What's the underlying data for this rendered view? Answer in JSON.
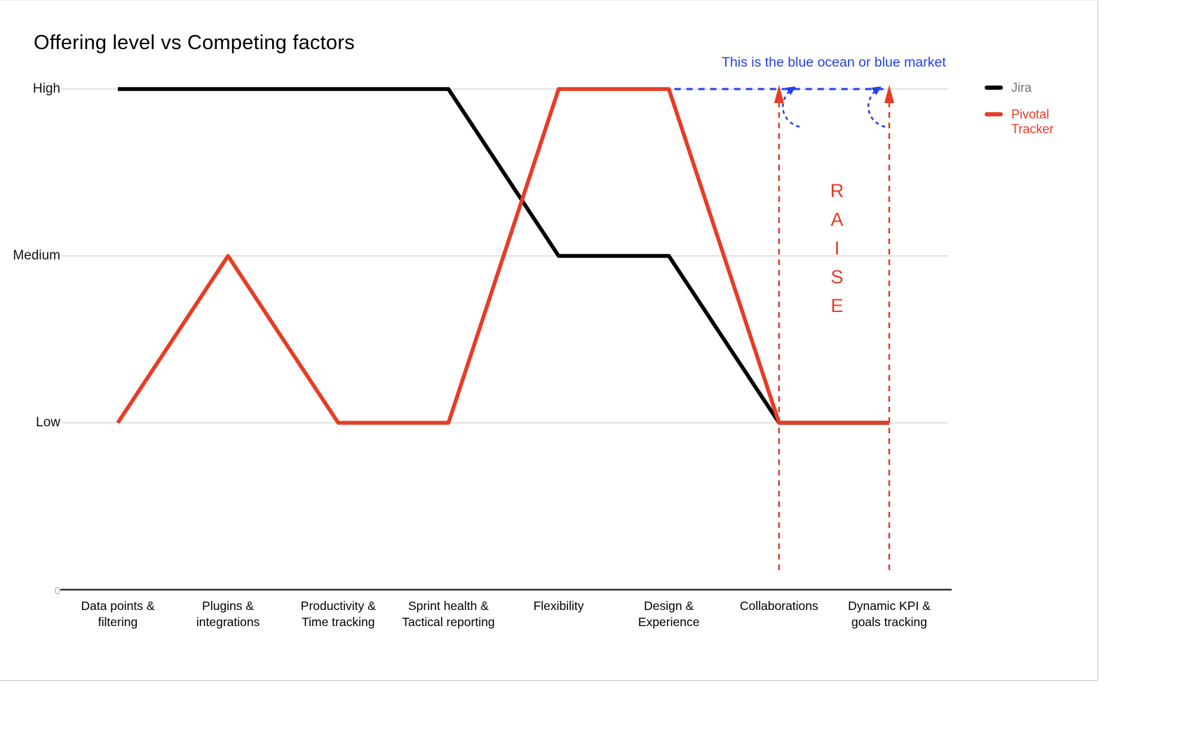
{
  "title": "Offering level vs Competing factors",
  "chart_data": {
    "type": "line",
    "title": "Offering level vs Competing factors",
    "categories": [
      "Data points & filtering",
      "Plugins & integrations",
      "Productivity & Time tracking",
      "Sprint health & Tactical reporting",
      "Flexibility",
      "Design & Experience",
      "Collaborations",
      "Dynamic KPI & goals tracking"
    ],
    "y_ticks": [
      "High",
      "Medium",
      "Low",
      "0"
    ],
    "grid": true,
    "legend_position": "right",
    "series": [
      {
        "name": "Jira",
        "color": "#000000",
        "label_color": "#757575",
        "values": [
          "High",
          "High",
          "High",
          "High",
          "Medium",
          "Medium",
          "Low",
          "Low"
        ]
      },
      {
        "name": "Pivotal Tracker",
        "color": "#e73c25",
        "label_color": "#e73c25",
        "values": [
          "Low",
          "Medium",
          "Low",
          "Low",
          "High",
          "High",
          "Low",
          "Low"
        ]
      }
    ],
    "annotations": {
      "blue_ocean": {
        "text": "This is the blue ocean or blue market",
        "color": "#2440e8",
        "level": "High",
        "from_category": "Design & Experience",
        "to_category": "Dynamic KPI & goals tracking"
      },
      "raise": {
        "text": "RAISE",
        "color": "#e73c25",
        "at_categories": [
          "Collaborations",
          "Dynamic KPI & goals tracking"
        ]
      }
    }
  }
}
